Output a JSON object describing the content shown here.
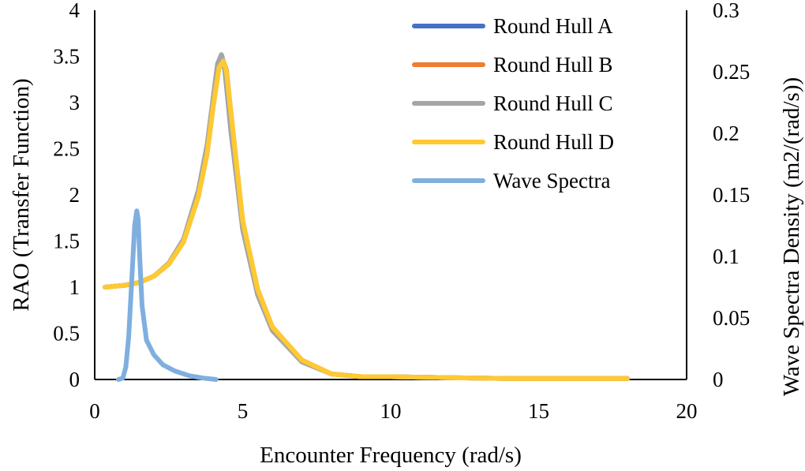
{
  "chart_data": {
    "type": "line",
    "xlabel": "Encounter Frequency (rad/s)",
    "ylabel": "RAO (Transfer Function)",
    "y2label": "Wave Spectra Density (m2/(rad/s))",
    "xlim": [
      0,
      20
    ],
    "ylim": [
      0,
      4
    ],
    "y2lim": [
      0,
      0.3
    ],
    "x_ticks": [
      "0",
      "5",
      "10",
      "15",
      "20"
    ],
    "y_ticks": [
      "0",
      "0.5",
      "1",
      "1.5",
      "2",
      "2.5",
      "3",
      "3.5",
      "4"
    ],
    "y2_ticks": [
      "0",
      "0.05",
      "0.1",
      "0.15",
      "0.2",
      "0.25",
      "0.3"
    ],
    "grid": false,
    "legend_position": "top-right",
    "series": [
      {
        "name": "Round Hull A",
        "color": "#4472C4",
        "axis": "left",
        "x": [
          0.35,
          1,
          1.5,
          2,
          2.5,
          3,
          3.5,
          3.8,
          4.0,
          4.2,
          4.3,
          4.4,
          4.6,
          5.0,
          5.5,
          6.0,
          7.0,
          8.0,
          9.0,
          10.0,
          12.0,
          14.0,
          16.0,
          18.0
        ],
        "y": [
          1.0,
          1.02,
          1.05,
          1.12,
          1.25,
          1.5,
          2.0,
          2.5,
          3.0,
          3.45,
          3.5,
          3.35,
          2.7,
          1.65,
          0.95,
          0.55,
          0.2,
          0.06,
          0.03,
          0.03,
          0.02,
          0.01,
          0.01,
          0.01
        ]
      },
      {
        "name": "Round Hull B",
        "color": "#ED7D31",
        "axis": "left",
        "x": [
          0.35,
          1,
          1.5,
          2,
          2.5,
          3,
          3.5,
          3.8,
          4.0,
          4.2,
          4.35,
          4.45,
          4.65,
          5.0,
          5.5,
          6.0,
          7.0,
          8.0,
          9.0,
          10.0,
          12.0,
          14.0,
          16.0,
          18.0
        ],
        "y": [
          1.0,
          1.02,
          1.05,
          1.12,
          1.25,
          1.49,
          1.98,
          2.45,
          2.95,
          3.38,
          3.45,
          3.35,
          2.75,
          1.72,
          0.98,
          0.57,
          0.21,
          0.06,
          0.03,
          0.03,
          0.02,
          0.01,
          0.01,
          0.01
        ]
      },
      {
        "name": "Round Hull C",
        "color": "#A5A5A5",
        "axis": "left",
        "x": [
          0.35,
          1,
          1.5,
          2,
          2.5,
          3,
          3.5,
          3.8,
          4.0,
          4.15,
          4.28,
          4.4,
          4.6,
          5.0,
          5.5,
          6.0,
          7.0,
          8.0,
          9.0,
          10.0,
          12.0,
          14.0,
          16.0,
          18.0
        ],
        "y": [
          1.0,
          1.02,
          1.05,
          1.12,
          1.26,
          1.52,
          2.05,
          2.55,
          3.05,
          3.42,
          3.52,
          3.38,
          2.7,
          1.62,
          0.92,
          0.53,
          0.19,
          0.06,
          0.03,
          0.03,
          0.02,
          0.01,
          0.01,
          0.01
        ]
      },
      {
        "name": "Round Hull D",
        "color": "#FFC931",
        "axis": "left",
        "x": [
          0.35,
          1,
          1.5,
          2,
          2.5,
          3,
          3.5,
          3.8,
          4.0,
          4.2,
          4.35,
          4.45,
          4.65,
          5.0,
          5.5,
          6.0,
          7.0,
          8.0,
          9.0,
          10.0,
          12.0,
          14.0,
          16.0,
          18.0
        ],
        "y": [
          1.0,
          1.02,
          1.05,
          1.12,
          1.25,
          1.49,
          1.98,
          2.45,
          2.95,
          3.38,
          3.45,
          3.33,
          2.75,
          1.72,
          0.98,
          0.57,
          0.21,
          0.06,
          0.03,
          0.03,
          0.02,
          0.01,
          0.01,
          0.01
        ]
      },
      {
        "name": "Wave Spectra",
        "color": "#7FAFDF",
        "axis": "right",
        "x": [
          0.8,
          0.95,
          1.05,
          1.15,
          1.25,
          1.35,
          1.42,
          1.47,
          1.52,
          1.6,
          1.75,
          2.0,
          2.3,
          2.7,
          3.2,
          3.7,
          4.1
        ],
        "y": [
          0.0,
          0.001,
          0.01,
          0.035,
          0.08,
          0.125,
          0.137,
          0.13,
          0.1,
          0.06,
          0.032,
          0.02,
          0.012,
          0.007,
          0.003,
          0.001,
          0.0
        ]
      }
    ]
  }
}
